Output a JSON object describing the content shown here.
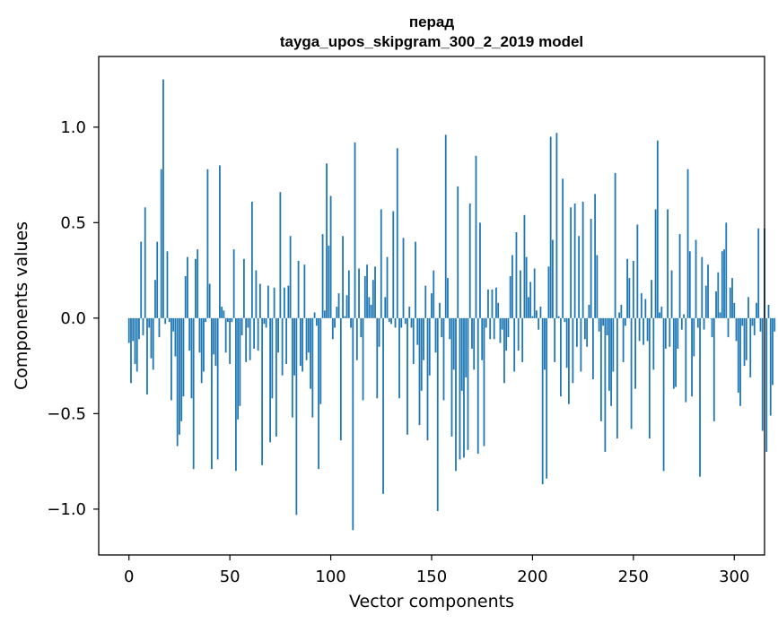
{
  "chart_data": {
    "type": "bar",
    "title_line1": "перад",
    "title_line2": "tayga_upos_skipgram_300_2_2019 model",
    "xlabel": "Vector components",
    "ylabel": "Components values",
    "xlim": [
      -15,
      315
    ],
    "ylim": [
      -1.24,
      1.37
    ],
    "xticks": [
      0,
      50,
      100,
      150,
      200,
      250,
      300
    ],
    "xtick_labels": [
      "0",
      "50",
      "100",
      "150",
      "200",
      "250",
      "300"
    ],
    "yticks": [
      -1.0,
      -0.5,
      0.0,
      0.5,
      1.0
    ],
    "ytick_labels": [
      "−1.0",
      "−0.5",
      "0.0",
      "0.5",
      "1.0"
    ],
    "bar_color": "#1f77b4",
    "grid": false,
    "values": [
      -0.13,
      -0.34,
      -0.12,
      -0.24,
      -0.28,
      -0.11,
      0.4,
      -0.09,
      0.58,
      -0.4,
      -0.05,
      -0.21,
      -0.27,
      0.2,
      0.4,
      -0.1,
      0.78,
      1.25,
      -0.03,
      0.35,
      -0.02,
      -0.43,
      -0.07,
      -0.2,
      -0.67,
      -0.61,
      -0.54,
      -0.41,
      0.22,
      0.32,
      -0.17,
      -0.42,
      -0.79,
      0.31,
      0.36,
      -0.18,
      -0.34,
      -0.28,
      -0.02,
      0.78,
      0.18,
      -0.79,
      -0.19,
      -0.25,
      -0.74,
      0.8,
      0.06,
      0.04,
      -0.18,
      -0.02,
      -0.24,
      -0.02,
      0.36,
      -0.8,
      -0.53,
      -0.46,
      -0.09,
      0.31,
      -0.23,
      -0.05,
      -0.22,
      0.61,
      -0.16,
      0.25,
      -0.17,
      0.18,
      -0.77,
      -0.03,
      -0.05,
      0.17,
      -0.65,
      -0.42,
      0.16,
      -0.62,
      -0.18,
      0.66,
      -0.3,
      0.16,
      -0.24,
      0.17,
      0.43,
      -0.52,
      -0.3,
      -1.03,
      0.3,
      -0.25,
      -0.28,
      0.28,
      -0.22,
      -0.18,
      -0.37,
      -0.52,
      0.03,
      -0.04,
      -0.79,
      -0.45,
      0.44,
      0.04,
      0.81,
      0.38,
      0.64,
      -0.11,
      -0.05,
      0.06,
      0.13,
      -0.64,
      0.43,
      0.01,
      0.12,
      0.25,
      -0.05,
      -1.11,
      0.92,
      -0.22,
      0.26,
      -0.1,
      -0.43,
      0.22,
      0.28,
      0.11,
      0.07,
      0.2,
      0.27,
      -0.42,
      -0.15,
      0.57,
      -0.92,
      0.11,
      0.32,
      -0.02,
      -0.03,
      0.56,
      -0.05,
      0.89,
      -0.42,
      -0.05,
      0.42,
      -0.03,
      -0.61,
      0.06,
      -0.05,
      -0.24,
      0.4,
      -0.14,
      -0.56,
      -0.38,
      -0.22,
      0.17,
      -0.64,
      -0.3,
      0.13,
      0.25,
      -0.18,
      -1.01,
      0.08,
      -0.1,
      -0.43,
      0.96,
      0.21,
      -0.11,
      -0.62,
      -0.27,
      -0.8,
      0.69,
      -0.74,
      -0.38,
      -0.73,
      -0.31,
      -0.69,
      0.6,
      -0.16,
      -0.27,
      0.85,
      -0.71,
      0.5,
      -0.22,
      -0.67,
      -0.05,
      0.15,
      -0.11,
      0.15,
      -0.11,
      0.16,
      0.08,
      -0.13,
      -0.06,
      -0.34,
      -0.17,
      -0.1,
      0.22,
      0.33,
      -0.28,
      0.45,
      -0.17,
      0.25,
      -0.23,
      0.54,
      0.32,
      0.11,
      0.19,
      0.01,
      0.26,
      0.04,
      -0.06,
      0.06,
      -0.87,
      -0.27,
      -0.84,
      0.27,
      0.95,
      0.41,
      -0.23,
      0.97,
      0.01,
      -0.41,
      0.73,
      -0.02,
      -0.26,
      -0.45,
      0.58,
      -0.34,
      0.6,
      -0.15,
      0.43,
      -0.28,
      0.61,
      -0.11,
      -0.15,
      0.07,
      0.52,
      -0.32,
      0.65,
      0.33,
      -0.07,
      -0.54,
      -0.04,
      -0.7,
      -0.09,
      -0.38,
      -0.46,
      -0.28,
      0.76,
      -0.63,
      0.03,
      0.07,
      -0.23,
      -0.04,
      0.31,
      0.21,
      -0.58,
      0.3,
      -0.37,
      0.49,
      -0.12,
      0.13,
      -0.14,
      0.1,
      -0.12,
      -0.63,
      0.2,
      -0.27,
      0.57,
      0.93,
      0.03,
      0.06,
      -0.8,
      -0.16,
      0.57,
      -0.15,
      0.25,
      -0.37,
      -0.36,
      -0.16,
      0.44,
      -0.06,
      0.02,
      -0.44,
      0.78,
      0.35,
      -0.41,
      -0.2,
      0.41,
      -0.05,
      -0.83,
      0.32,
      -0.06,
      0.17,
      0.28,
      0.0,
      -0.1,
      -0.54,
      0.14,
      0.24,
      0.03,
      0.35,
      0.36,
      0.5,
      -0.1,
      0.16,
      0.21,
      0.08,
      -0.12,
      -0.39,
      -0.46,
      -0.04,
      -0.25,
      -0.22,
      0.11,
      -0.31,
      -0.04,
      -0.09,
      0.08,
      0.47,
      -0.07,
      -0.59,
      0.47,
      -0.7,
      0.07,
      -0.51,
      -0.35,
      -0.07
    ]
  }
}
